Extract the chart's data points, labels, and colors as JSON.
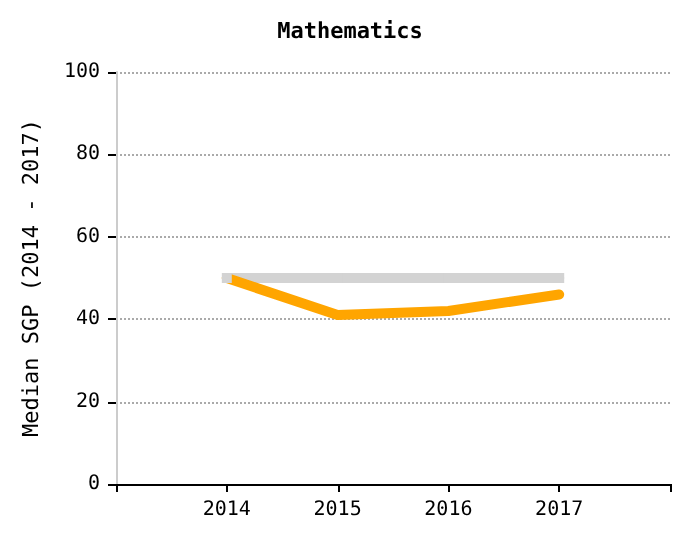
{
  "chart_data": {
    "type": "line",
    "title": "Mathematics",
    "ylabel": "Median SGP (2014 - 2017)",
    "x": [
      2014,
      2015,
      2016,
      2017
    ],
    "xlim": [
      2013,
      2018
    ],
    "xticks": [
      {
        "value": 2013,
        "label": null
      },
      2014,
      2015,
      2016,
      2017,
      {
        "value": 2018,
        "label": null
      }
    ],
    "ylim": [
      0,
      100
    ],
    "yticks": [
      0,
      20,
      40,
      60,
      80,
      100
    ],
    "grid": "y",
    "line_style": "solid",
    "series": [
      {
        "color": "#d3d3d3",
        "values": [
          50,
          50,
          50,
          50
        ],
        "marker": "square"
      },
      {
        "color": "#ffa500",
        "values": [
          50,
          41,
          42,
          46
        ],
        "marker": "none"
      }
    ]
  }
}
